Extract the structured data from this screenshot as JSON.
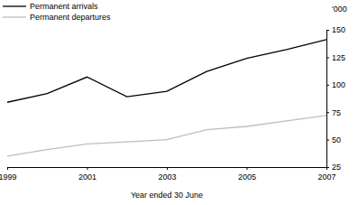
{
  "chart_data": {
    "type": "line",
    "x_label": "Year ended 30 June",
    "y_label": "'000",
    "x": [
      1999,
      2000,
      2001,
      2002,
      2003,
      2004,
      2005,
      2006,
      2007
    ],
    "xlim": [
      1999,
      2007
    ],
    "xticks": [
      1999,
      2001,
      2003,
      2005,
      2007
    ],
    "ylim": [
      25,
      150
    ],
    "yticks": [
      25,
      50,
      75,
      100,
      125,
      150
    ],
    "legend": "upper left",
    "series": [
      {
        "name": "Permanent arrivals",
        "color": "#000000",
        "values": [
          84,
          92,
          107,
          89,
          94,
          112,
          124,
          132,
          141
        ]
      },
      {
        "name": "Permanent departures",
        "color": "#bdbdbd",
        "values": [
          35,
          41,
          46,
          48,
          50,
          59,
          62,
          67,
          72
        ]
      }
    ]
  }
}
